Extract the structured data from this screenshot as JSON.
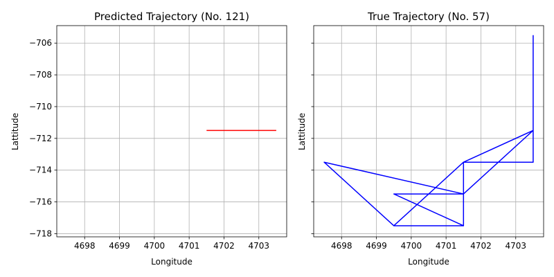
{
  "chart_data": [
    {
      "type": "line",
      "title": "Predicted Trajectory (No. 121)",
      "xlabel": "Longitude",
      "ylabel": "Lattitude",
      "xlim": [
        4697.2,
        4703.8
      ],
      "ylim": [
        -718.2,
        -704.9
      ],
      "xticks": [
        "4698",
        "4699",
        "4700",
        "4701",
        "4702",
        "4703"
      ],
      "yticks": [
        "−706",
        "−708",
        "−710",
        "−712",
        "−714",
        "−716",
        "−718"
      ],
      "grid": true,
      "series": [
        {
          "color": "#ff0000",
          "points": [
            [
              4701.5,
              -711.5
            ],
            [
              4703.5,
              -711.5
            ]
          ]
        }
      ]
    },
    {
      "type": "line",
      "title": "True Trajectory (No. 57)",
      "xlabel": "Longitude",
      "ylabel": "Lattitude",
      "xlim": [
        4697.2,
        4703.8
      ],
      "ylim": [
        -718.2,
        -704.9
      ],
      "xticks": [
        "4698",
        "4699",
        "4700",
        "4701",
        "4702",
        "4703"
      ],
      "yticks": [
        "−706",
        "−708",
        "−710",
        "−712",
        "−714",
        "−716",
        "−718"
      ],
      "yticklabels_visible": false,
      "grid": true,
      "series": [
        {
          "color": "#0000ff",
          "points": [
            [
              4703.5,
              -705.5
            ],
            [
              4703.5,
              -711.5
            ],
            [
              4701.5,
              -713.5
            ],
            [
              4701.5,
              -715.5
            ],
            [
              4697.5,
              -713.5
            ],
            [
              4699.5,
              -717.5
            ],
            [
              4701.5,
              -717.5
            ],
            [
              4699.5,
              -715.5
            ],
            [
              4701.5,
              -715.5
            ],
            [
              4703.5,
              -711.5
            ],
            [
              4703.5,
              -707.5
            ],
            [
              4703.5,
              -713.5
            ],
            [
              4701.5,
              -713.5
            ],
            [
              4701.5,
              -717.5
            ],
            [
              4701.5,
              -713.5
            ],
            [
              4699.5,
              -717.5
            ],
            [
              4701.5,
              -713.5
            ],
            [
              4703.5,
              -711.5
            ],
            [
              4701.5,
              -713.5
            ],
            [
              4703.5,
              -713.5
            ]
          ]
        }
      ]
    }
  ]
}
